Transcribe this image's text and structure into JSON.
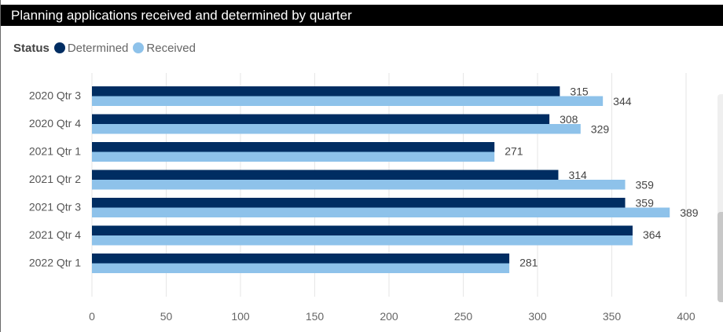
{
  "visual": {
    "title": "Planning applications received and determined by quarter",
    "legend_title": "Status"
  },
  "colors": {
    "determined": "#002d62",
    "received": "#8ec2ea",
    "gridline": "#e6e6e6"
  },
  "chart_data": {
    "type": "bar",
    "orientation": "horizontal",
    "title": "Planning applications received and determined by quarter",
    "legend_title": "Status",
    "legend_position": "top-left",
    "categories": [
      "2020 Qtr 3",
      "2020 Qtr 4",
      "2021 Qtr 1",
      "2021 Qtr 2",
      "2021 Qtr 3",
      "2021 Qtr 4",
      "2022 Qtr 1"
    ],
    "series": [
      {
        "name": "Determined",
        "values": [
          315,
          308,
          271,
          314,
          359,
          364,
          281
        ]
      },
      {
        "name": "Received",
        "values": [
          344,
          329,
          271,
          359,
          389,
          364,
          281
        ]
      }
    ],
    "xlim": [
      0,
      400
    ],
    "xticks": [
      0,
      50,
      100,
      150,
      200,
      250,
      300,
      350,
      400
    ],
    "grid": true,
    "xlabel": "",
    "ylabel": ""
  }
}
